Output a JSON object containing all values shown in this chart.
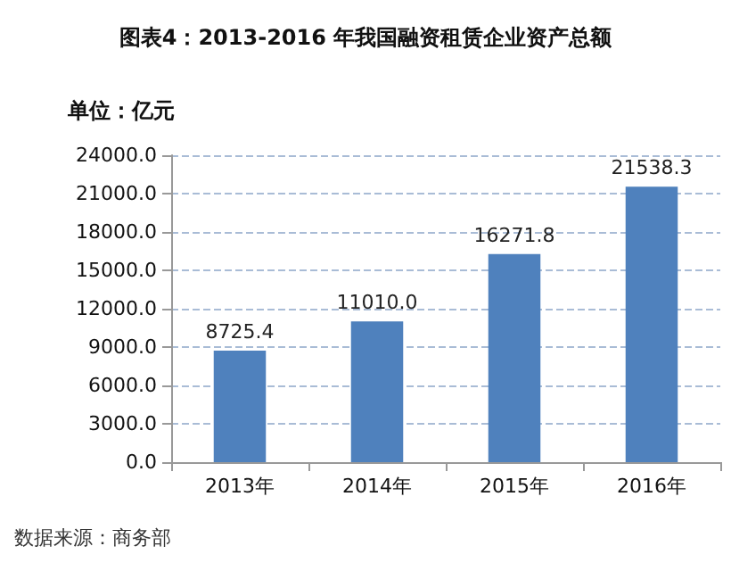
{
  "chart_data": {
    "type": "bar",
    "title": "图表4：2013-2016 年我国融资租赁企业资产总额",
    "ylabel": "单位：亿元",
    "categories": [
      "2013年",
      "2014年",
      "2015年",
      "2016年"
    ],
    "values": [
      8725.4,
      11010.0,
      16271.8,
      21538.3
    ],
    "color": "#4f81bd",
    "value_labels": [
      "8725.4",
      "11010.0",
      "16271.8",
      "21538.3"
    ],
    "ylim": [
      0,
      24000
    ],
    "yticks": [
      {
        "value": 0,
        "label": "0.0"
      },
      {
        "value": 3000,
        "label": "3000.0"
      },
      {
        "value": 6000,
        "label": "6000.0"
      },
      {
        "value": 9000,
        "label": "9000.0"
      },
      {
        "value": 12000,
        "label": "12000.0"
      },
      {
        "value": 15000,
        "label": "15000.0"
      },
      {
        "value": 18000,
        "label": "18000.0"
      },
      {
        "value": 21000,
        "label": "21000.0"
      },
      {
        "value": 24000,
        "label": "24000.0"
      }
    ],
    "grid": "y",
    "annotations": [
      "数据来源：商务部"
    ]
  }
}
